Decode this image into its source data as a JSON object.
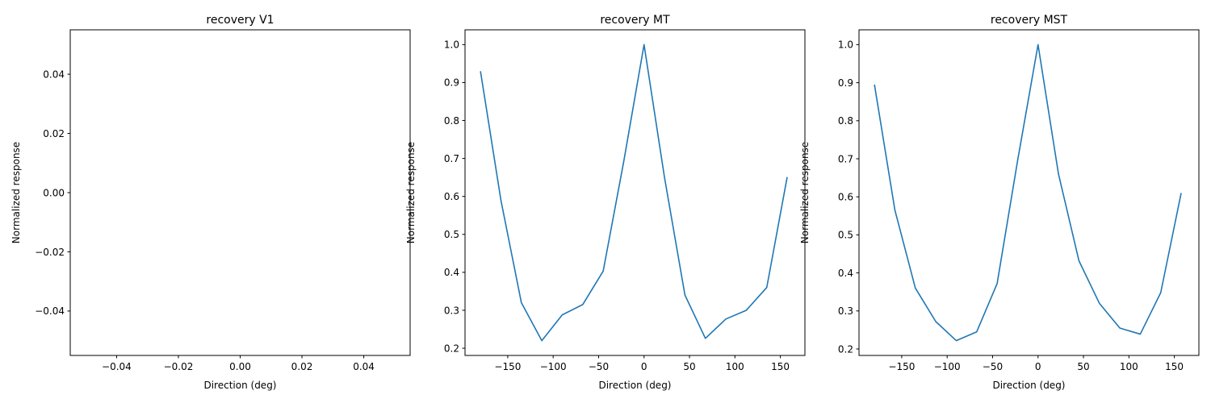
{
  "figure_bg": "#ffffff",
  "chart_data": [
    {
      "type": "line",
      "title": "recovery V1",
      "xlabel": "Direction (deg)",
      "ylabel": "Normalized response",
      "xlim": [
        -0.055,
        0.055
      ],
      "ylim": [
        -0.055,
        0.055
      ],
      "xticks": [
        -0.04,
        -0.02,
        0.0,
        0.02,
        0.04
      ],
      "xtick_labels": [
        "−0.04",
        "−0.02",
        "0.00",
        "0.02",
        "0.04"
      ],
      "yticks": [
        -0.04,
        -0.02,
        0.0,
        0.02,
        0.04
      ],
      "ytick_labels": [
        "−0.04",
        "−0.02",
        "0.00",
        "0.02",
        "0.04"
      ],
      "grid": false,
      "series": [
        {
          "color": "#1f77b4",
          "x": [],
          "y": []
        }
      ]
    },
    {
      "type": "line",
      "title": "recovery MT",
      "xlabel": "Direction (deg)",
      "ylabel": "Normalized response",
      "xlim": [
        -197,
        177
      ],
      "ylim": [
        0.181,
        1.039
      ],
      "xticks": [
        -150,
        -100,
        -50,
        0,
        50,
        100,
        150
      ],
      "xtick_labels": [
        "−150",
        "−100",
        "−50",
        "0",
        "50",
        "100",
        "150"
      ],
      "yticks": [
        0.2,
        0.3,
        0.4,
        0.5,
        0.6,
        0.7,
        0.8,
        0.9,
        1.0
      ],
      "ytick_labels": [
        "0.2",
        "0.3",
        "0.4",
        "0.5",
        "0.6",
        "0.7",
        "0.8",
        "0.9",
        "1.0"
      ],
      "grid": false,
      "series": [
        {
          "color": "#1f77b4",
          "x": [
            -180,
            -157.5,
            -135,
            -112.5,
            -90,
            -67.5,
            -45,
            -22.5,
            0,
            22.5,
            45,
            67.5,
            90,
            112.5,
            135,
            157.5
          ],
          "y": [
            0.93,
            0.59,
            0.32,
            0.22,
            0.288,
            0.315,
            0.403,
            0.69,
            1.0,
            0.65,
            0.34,
            0.226,
            0.277,
            0.3,
            0.36,
            0.651
          ]
        }
      ]
    },
    {
      "type": "line",
      "title": "recovery MST",
      "xlabel": "Direction (deg)",
      "ylabel": "Normalized response",
      "xlim": [
        -197,
        177
      ],
      "ylim": [
        0.183,
        1.039
      ],
      "xticks": [
        -150,
        -100,
        -50,
        0,
        50,
        100,
        150
      ],
      "xtick_labels": [
        "−150",
        "−100",
        "−50",
        "0",
        "50",
        "100",
        "150"
      ],
      "yticks": [
        0.2,
        0.3,
        0.4,
        0.5,
        0.6,
        0.7,
        0.8,
        0.9,
        1.0
      ],
      "ytick_labels": [
        "0.2",
        "0.3",
        "0.4",
        "0.5",
        "0.6",
        "0.7",
        "0.8",
        "0.9",
        "1.0"
      ],
      "grid": false,
      "series": [
        {
          "color": "#1f77b4",
          "x": [
            -180,
            -157.5,
            -135,
            -112.5,
            -90,
            -67.5,
            -45,
            -22.5,
            0,
            22.5,
            45,
            67.5,
            90,
            112.5,
            135,
            157.5
          ],
          "y": [
            0.895,
            0.565,
            0.36,
            0.272,
            0.222,
            0.245,
            0.372,
            0.695,
            1.0,
            0.66,
            0.432,
            0.32,
            0.255,
            0.239,
            0.348,
            0.61
          ]
        }
      ]
    }
  ]
}
